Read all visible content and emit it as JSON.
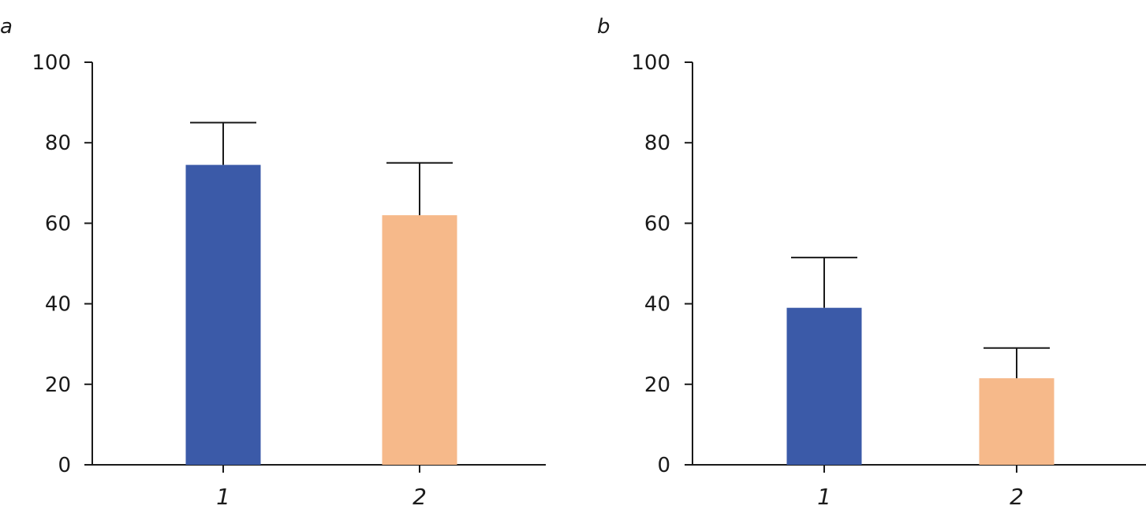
{
  "chart_data": [
    {
      "type": "bar",
      "panel_label": "a",
      "categories": [
        "1",
        "2"
      ],
      "values": [
        74.5,
        62
      ],
      "errors": [
        10.5,
        13
      ],
      "ylim": [
        0,
        100
      ],
      "yticks": [
        "0",
        "20",
        "40",
        "60",
        "80",
        "100"
      ],
      "colors": [
        "#3b5aa8",
        "#f6b98a"
      ],
      "title": "",
      "xlabel": "",
      "ylabel": "",
      "grid": false
    },
    {
      "type": "bar",
      "panel_label": "b",
      "categories": [
        "1",
        "2"
      ],
      "values": [
        39,
        21.5
      ],
      "errors": [
        12.5,
        7.5
      ],
      "ylim": [
        0,
        100
      ],
      "yticks": [
        "0",
        "20",
        "40",
        "60",
        "80",
        "100"
      ],
      "colors": [
        "#3b5aa8",
        "#f6b98a"
      ],
      "title": "",
      "xlabel": "",
      "ylabel": "",
      "grid": false
    }
  ]
}
